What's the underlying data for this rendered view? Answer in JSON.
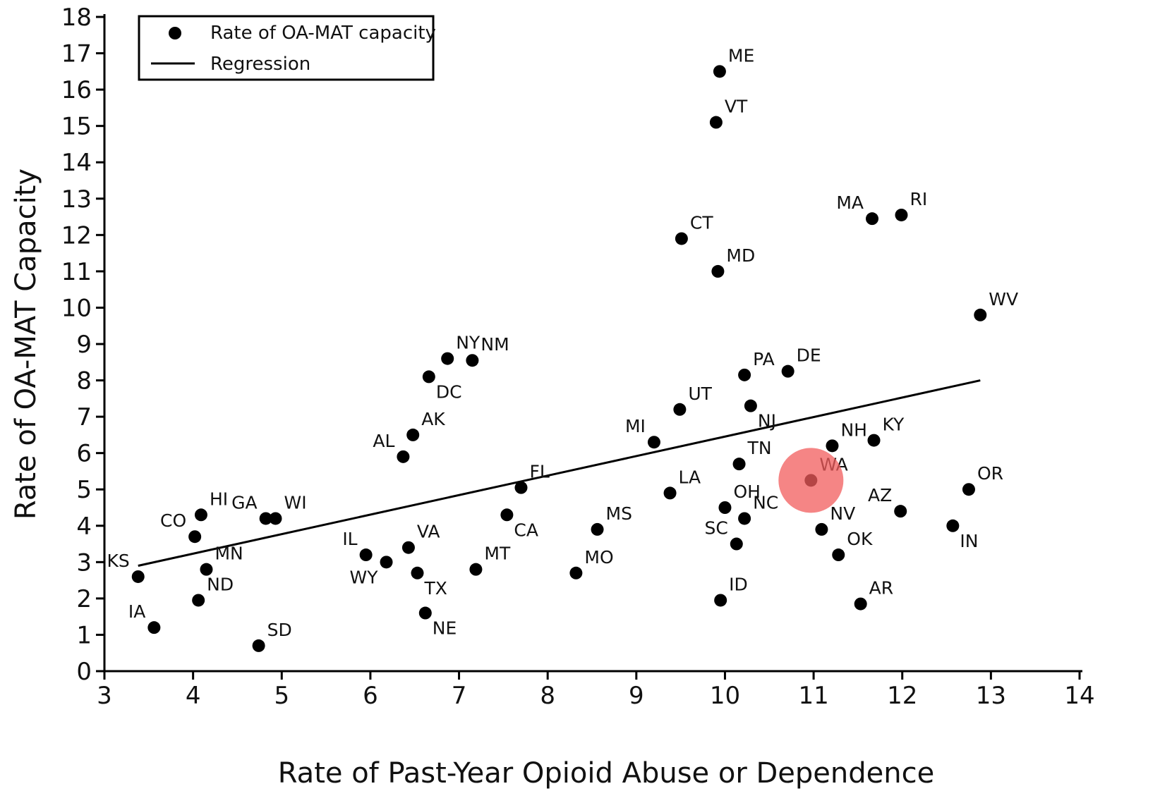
{
  "chart_data": {
    "type": "scatter",
    "title": "",
    "xlabel": "Rate of Past-Year Opioid Abuse or Dependence",
    "ylabel": "Rate of OA-MAT Capacity",
    "xlim": [
      3,
      14
    ],
    "ylim": [
      0,
      18
    ],
    "xticks": [
      3,
      4,
      5,
      6,
      7,
      8,
      9,
      10,
      11,
      12,
      13,
      14
    ],
    "yticks": [
      0,
      1,
      2,
      3,
      4,
      5,
      6,
      7,
      8,
      9,
      10,
      11,
      12,
      13,
      14,
      15,
      16,
      17,
      18
    ],
    "grid": false,
    "legend": {
      "position": "top-left",
      "entries": [
        {
          "label": "Rate of OA-MAT capacity",
          "marker": "dot"
        },
        {
          "label": "Regression",
          "marker": "line"
        }
      ]
    },
    "series": [
      {
        "name": "Rate of OA-MAT capacity",
        "color": "#000000",
        "points": [
          {
            "label": "KS",
            "x": 3.38,
            "y": 2.6,
            "lp": "tl"
          },
          {
            "label": "IA",
            "x": 3.56,
            "y": 1.2,
            "lp": "tl"
          },
          {
            "label": "CO",
            "x": 4.02,
            "y": 3.7,
            "lp": "tl"
          },
          {
            "label": "HI",
            "x": 4.09,
            "y": 4.3,
            "lp": "tr"
          },
          {
            "label": "MN",
            "x": 4.15,
            "y": 2.8,
            "lp": "tr"
          },
          {
            "label": "ND",
            "x": 4.06,
            "y": 1.95,
            "lp": "tr"
          },
          {
            "label": "GA",
            "x": 4.82,
            "y": 4.2,
            "lp": "tl"
          },
          {
            "label": "WI",
            "x": 4.93,
            "y": 4.2,
            "lp": "tr"
          },
          {
            "label": "SD",
            "x": 4.74,
            "y": 0.7,
            "lp": "tr"
          },
          {
            "label": "IL",
            "x": 5.95,
            "y": 3.2,
            "lp": "tl"
          },
          {
            "label": "WY",
            "x": 6.18,
            "y": 3.0,
            "lp": "bl"
          },
          {
            "label": "VA",
            "x": 6.43,
            "y": 3.4,
            "lp": "tr"
          },
          {
            "label": "TX",
            "x": 6.53,
            "y": 2.7,
            "lp": "br"
          },
          {
            "label": "NE",
            "x": 6.62,
            "y": 1.6,
            "lp": "br"
          },
          {
            "label": "AL",
            "x": 6.37,
            "y": 5.9,
            "lp": "tl"
          },
          {
            "label": "AK",
            "x": 6.48,
            "y": 6.5,
            "lp": "tr"
          },
          {
            "label": "DC",
            "x": 6.66,
            "y": 8.1,
            "lp": "br"
          },
          {
            "label": "NY",
            "x": 6.87,
            "y": 8.6,
            "lp": "tr"
          },
          {
            "label": "NM",
            "x": 7.15,
            "y": 8.55,
            "lp": "tr"
          },
          {
            "label": "MT",
            "x": 7.19,
            "y": 2.8,
            "lp": "tr"
          },
          {
            "label": "CA",
            "x": 7.54,
            "y": 4.3,
            "lp": "br"
          },
          {
            "label": "FL",
            "x": 7.7,
            "y": 5.05,
            "lp": "tr"
          },
          {
            "label": "MO",
            "x": 8.32,
            "y": 2.7,
            "lp": "tr"
          },
          {
            "label": "MS",
            "x": 8.56,
            "y": 3.9,
            "lp": "tr"
          },
          {
            "label": "MI",
            "x": 9.2,
            "y": 6.3,
            "lp": "tl"
          },
          {
            "label": "LA",
            "x": 9.38,
            "y": 4.9,
            "lp": "tr"
          },
          {
            "label": "UT",
            "x": 9.49,
            "y": 7.2,
            "lp": "tr"
          },
          {
            "label": "CT",
            "x": 9.51,
            "y": 11.9,
            "lp": "tr"
          },
          {
            "label": "ME",
            "x": 9.94,
            "y": 16.5,
            "lp": "tr"
          },
          {
            "label": "VT",
            "x": 9.9,
            "y": 15.1,
            "lp": "tr"
          },
          {
            "label": "MD",
            "x": 9.92,
            "y": 11.0,
            "lp": "tr"
          },
          {
            "label": "ID",
            "x": 9.95,
            "y": 1.95,
            "lp": "tr"
          },
          {
            "label": "OH",
            "x": 10.0,
            "y": 4.5,
            "lp": "tr"
          },
          {
            "label": "SC",
            "x": 10.13,
            "y": 3.5,
            "lp": "tl"
          },
          {
            "label": "TN",
            "x": 10.16,
            "y": 5.7,
            "lp": "tr"
          },
          {
            "label": "NC",
            "x": 10.22,
            "y": 4.2,
            "lp": "tr"
          },
          {
            "label": "PA",
            "x": 10.22,
            "y": 8.15,
            "lp": "tr"
          },
          {
            "label": "NJ",
            "x": 10.29,
            "y": 7.3,
            "lp": "br"
          },
          {
            "label": "DE",
            "x": 10.71,
            "y": 8.25,
            "lp": "tr"
          },
          {
            "label": "WA",
            "x": 10.97,
            "y": 5.25,
            "lp": "tr"
          },
          {
            "label": "NV",
            "x": 11.09,
            "y": 3.9,
            "lp": "tr"
          },
          {
            "label": "NH",
            "x": 11.21,
            "y": 6.2,
            "lp": "tr"
          },
          {
            "label": "OK",
            "x": 11.28,
            "y": 3.2,
            "lp": "tr"
          },
          {
            "label": "AR",
            "x": 11.53,
            "y": 1.85,
            "lp": "tr"
          },
          {
            "label": "MA",
            "x": 11.66,
            "y": 12.45,
            "lp": "tl"
          },
          {
            "label": "KY",
            "x": 11.68,
            "y": 6.35,
            "lp": "tr"
          },
          {
            "label": "AZ",
            "x": 11.98,
            "y": 4.4,
            "lp": "tl"
          },
          {
            "label": "RI",
            "x": 11.99,
            "y": 12.55,
            "lp": "tr"
          },
          {
            "label": "IN",
            "x": 12.57,
            "y": 4.0,
            "lp": "br"
          },
          {
            "label": "OR",
            "x": 12.75,
            "y": 5.0,
            "lp": "tr"
          },
          {
            "label": "WV",
            "x": 12.88,
            "y": 9.8,
            "lp": "tr"
          }
        ]
      },
      {
        "name": "Regression",
        "type": "line",
        "color": "#000000",
        "x": [
          3.38,
          12.88
        ],
        "y": [
          2.9,
          8.0
        ]
      }
    ],
    "highlight": {
      "label": "WA",
      "x": 10.97,
      "y": 5.25,
      "color": "#f25c5c"
    }
  }
}
